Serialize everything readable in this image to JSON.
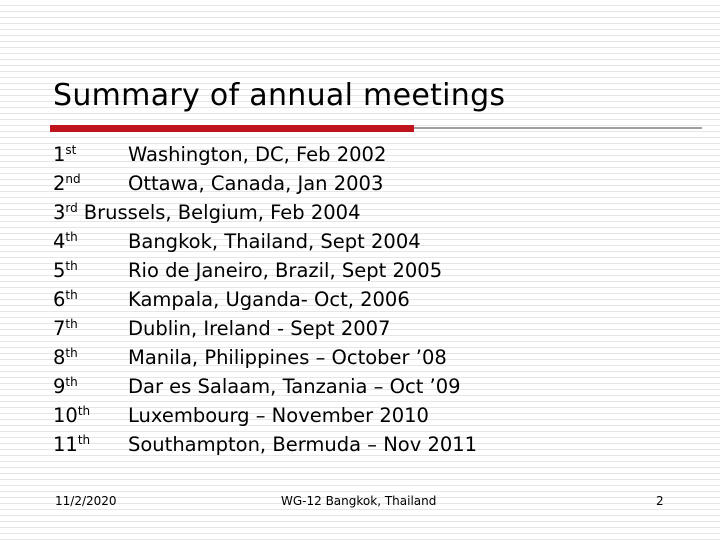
{
  "title": "Summary of annual meetings",
  "items": [
    {
      "number": "1",
      "suffix": "st",
      "text": "Washington, DC, Feb 2002"
    },
    {
      "number": "2",
      "suffix": "nd",
      "text": "Ottawa, Canada, Jan 2003"
    },
    {
      "number": "3",
      "suffix": "rd",
      "text": "Brussels, Belgium, Feb 2004"
    },
    {
      "number": "4",
      "suffix": "th",
      "text": "Bangkok, Thailand, Sept 2004"
    },
    {
      "number": "5",
      "suffix": "th",
      "text": "Rio de Janeiro, Brazil, Sept 2005"
    },
    {
      "number": "6",
      "suffix": "th",
      "text": "Kampala, Uganda- Oct, 2006"
    },
    {
      "number": "7",
      "suffix": "th",
      "text": "Dublin, Ireland - Sept 2007"
    },
    {
      "number": "8",
      "suffix": "th",
      "text": "Manila, Philippines – October ’08"
    },
    {
      "number": "9",
      "suffix": "th",
      "text": "Dar es Salaam, Tanzania – Oct ’09"
    },
    {
      "number": "10",
      "suffix": "th",
      "text": "Luxembourg – November 2010"
    },
    {
      "number": "11",
      "suffix": "th",
      "text": "Southampton, Bermuda – Nov 2011"
    }
  ],
  "footer": {
    "date": "11/2/2020",
    "center": "WG-12 Bangkok, Thailand",
    "page": "2"
  }
}
